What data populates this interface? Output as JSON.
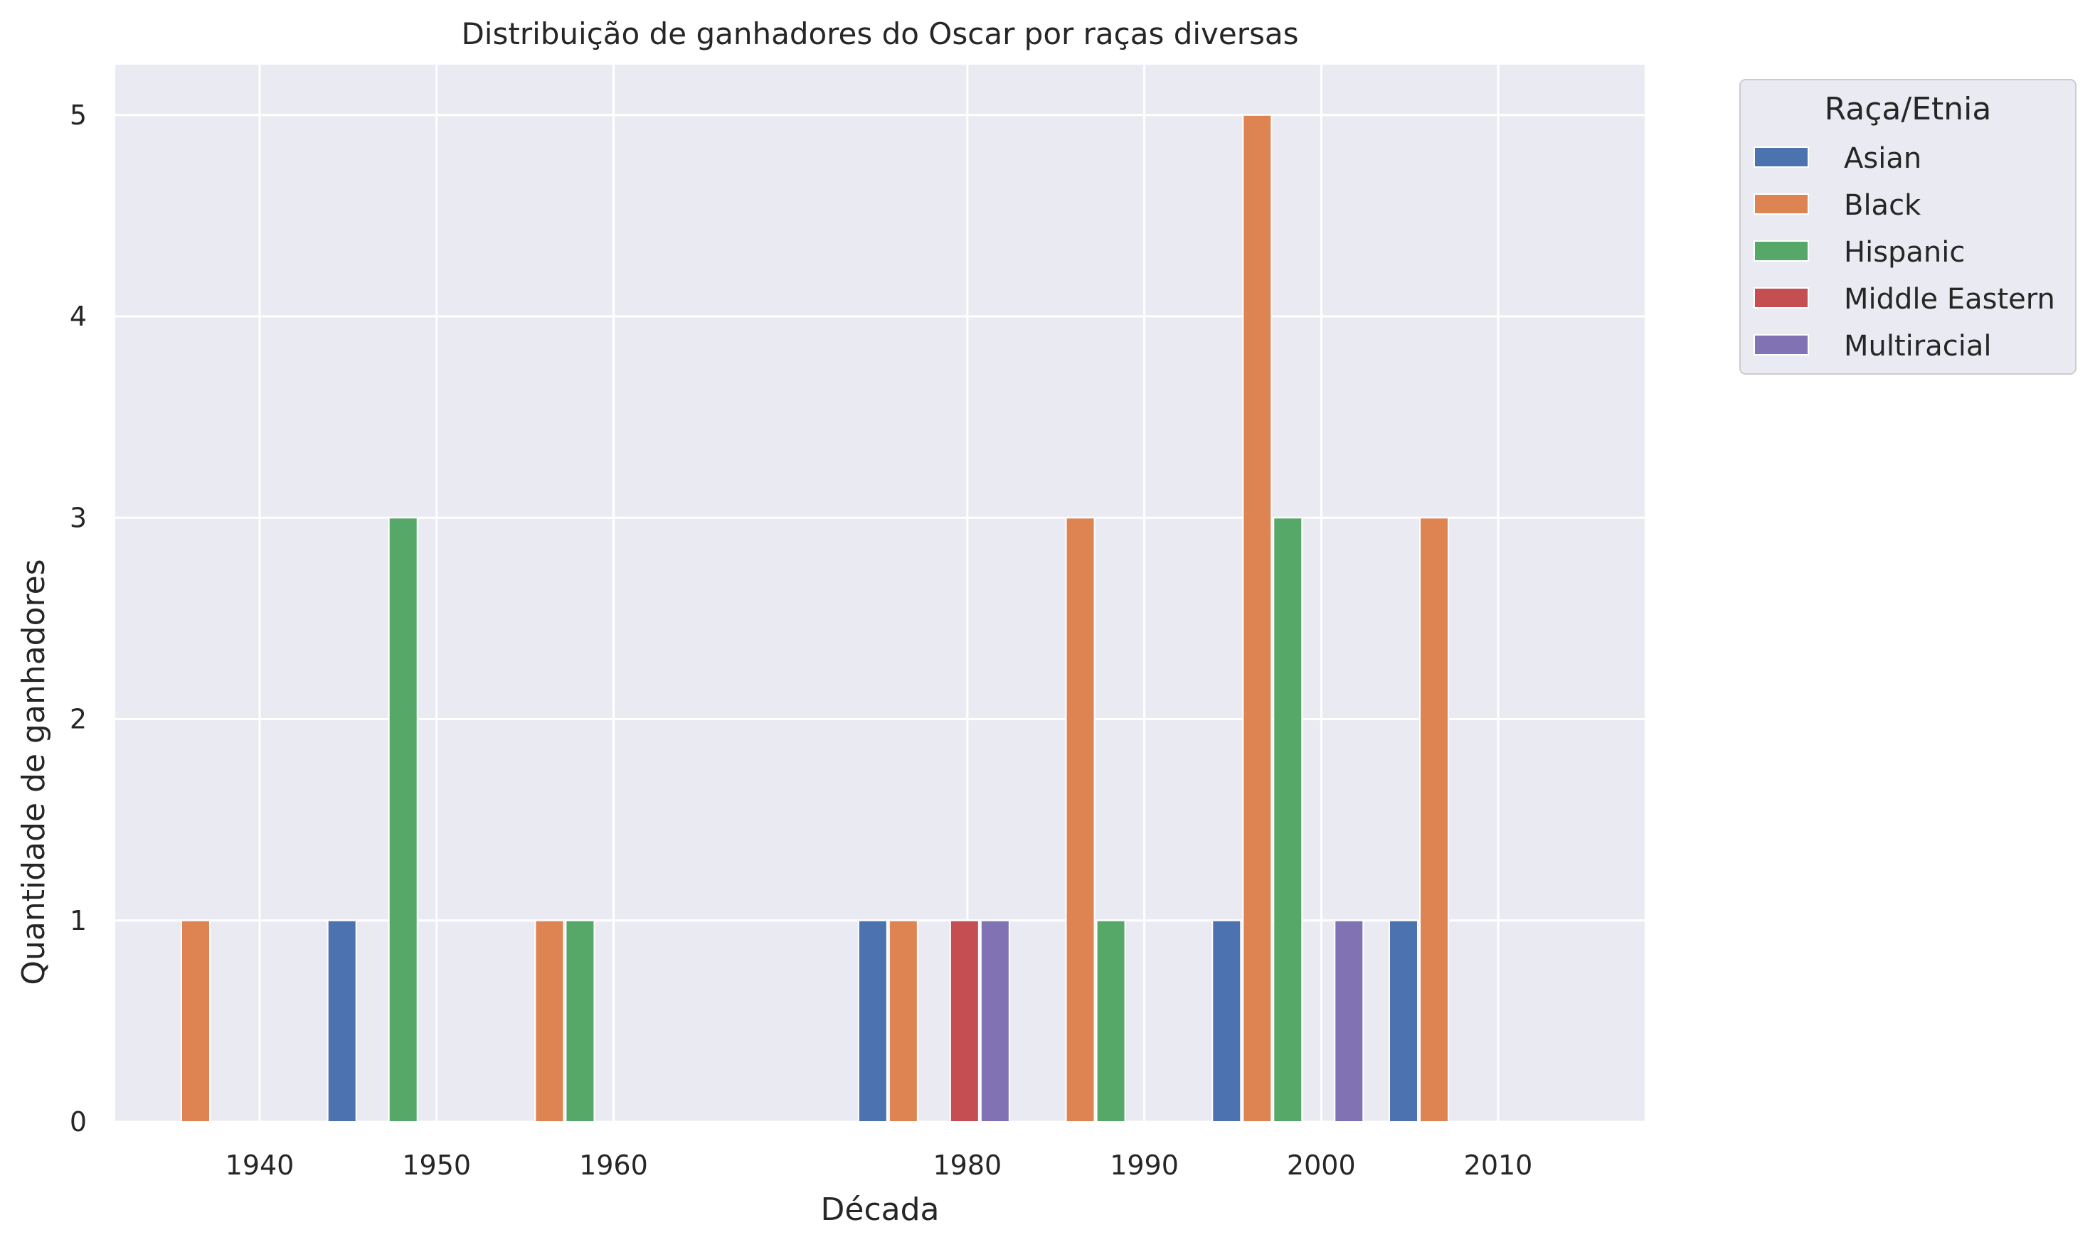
{
  "chart_data": {
    "type": "bar",
    "title": "Distribuição de ganhadores do Oscar por raças diversas",
    "xlabel": "Década",
    "ylabel": "Quantidade de ganhadores",
    "categories": [
      "1940",
      "1950",
      "1960",
      "1980",
      "1990",
      "2000",
      "2010"
    ],
    "yticks": [
      "0",
      "1",
      "2",
      "3",
      "4",
      "5"
    ],
    "ylim": [
      0,
      5.25
    ],
    "grid": true,
    "legend": {
      "title": "Raça/Etnia",
      "placement": "outside-top-right"
    },
    "series": [
      {
        "name": "Asian",
        "color": "#4c72b0",
        "values": [
          0,
          1,
          0,
          1,
          0,
          1,
          1
        ]
      },
      {
        "name": "Black",
        "color": "#dd8452",
        "values": [
          1,
          0,
          1,
          1,
          3,
          5,
          3
        ]
      },
      {
        "name": "Hispanic",
        "color": "#55a868",
        "values": [
          0,
          3,
          1,
          0,
          1,
          3,
          0
        ]
      },
      {
        "name": "Middle Eastern",
        "color": "#c44e52",
        "values": [
          0,
          0,
          0,
          1,
          0,
          0,
          0
        ]
      },
      {
        "name": "Multiracial",
        "color": "#8172b3",
        "values": [
          0,
          0,
          0,
          1,
          0,
          1,
          0
        ]
      }
    ]
  }
}
